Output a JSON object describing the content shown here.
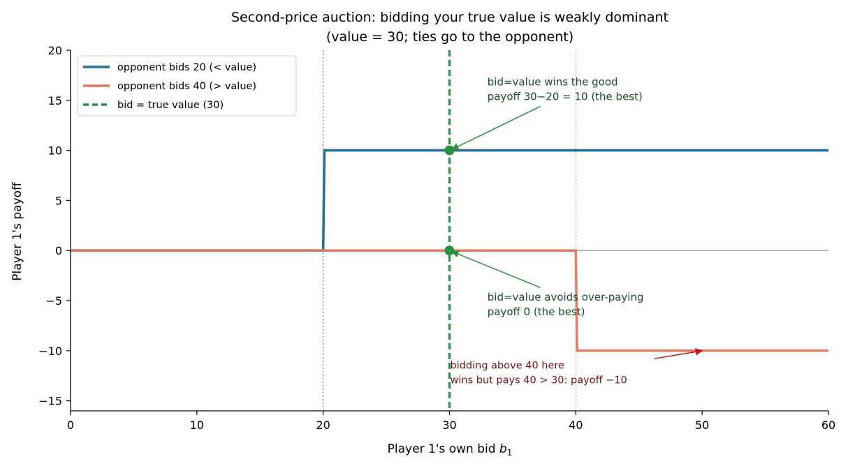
{
  "chart_data": {
    "type": "line",
    "title": "Second-price auction: bidding your true value is weakly dominant",
    "subtitle": "(value = 30; ties go to the opponent)",
    "xlabel": "Player 1's own bid",
    "xlabel_symbol": "b",
    "xlabel_subscript": "1",
    "ylabel": "Player 1's payoff",
    "xlim": [
      0,
      60
    ],
    "ylim": [
      -16,
      20
    ],
    "xticks": [
      0,
      10,
      20,
      30,
      40,
      50,
      60
    ],
    "yticks": [
      -15,
      -10,
      -5,
      0,
      5,
      10,
      15,
      20
    ],
    "ytick_labels": [
      "−15",
      "−10",
      "−5",
      "0",
      "5",
      "10",
      "15",
      "20"
    ],
    "grid": false,
    "legend_position": "top-left",
    "series": [
      {
        "name": "opponent bids 20  (< value)",
        "color": "#2a6f97",
        "style": "solid",
        "x": [
          0,
          20,
          20.1,
          60
        ],
        "y": [
          0,
          0,
          10,
          10
        ]
      },
      {
        "name": "opponent bids 40  (> value)",
        "color": "#e07a5f",
        "style": "solid",
        "x": [
          0,
          40,
          40.1,
          60
        ],
        "y": [
          0,
          0,
          -10,
          -10
        ]
      }
    ],
    "reference_lines": [
      {
        "name": "bid = true value (30)",
        "axis": "x",
        "value": 30,
        "color": "#2a9142",
        "style": "dashed",
        "in_legend": true
      },
      {
        "name": "",
        "axis": "x",
        "value": 20,
        "color": "#7ea4d0",
        "style": "dotted",
        "in_legend": false
      },
      {
        "name": "",
        "axis": "x",
        "value": 40,
        "color": "#f0b89e",
        "style": "dotted",
        "in_legend": false
      },
      {
        "name": "",
        "axis": "y",
        "value": 0,
        "color": "#999999",
        "style": "solid",
        "in_legend": false
      }
    ],
    "markers": [
      {
        "x": 30,
        "y": 10,
        "color": "#2a9142"
      },
      {
        "x": 30,
        "y": 0,
        "color": "#2a9142"
      }
    ],
    "annotations": [
      {
        "lines": [
          "bid=value wins the good",
          "payoff 30−20 = 10 (the best)"
        ],
        "text_x": 33,
        "text_y": 16.5,
        "arrow_from": [
          37.2,
          14.4
        ],
        "arrow_to": [
          30.2,
          10.1
        ],
        "color": "#2a9142",
        "text_color": "#1a4d2a"
      },
      {
        "lines": [
          "bid=value avoids over-paying",
          "payoff 0 (the best)"
        ],
        "text_x": 33,
        "text_y": -5,
        "arrow_from": [
          37.2,
          -3.7
        ],
        "arrow_to": [
          30.2,
          -0.1
        ],
        "color": "#2a9142",
        "text_color": "#1a4d2a"
      },
      {
        "lines": [
          "bidding above 40 here",
          "wins but pays 40 > 30: payoff −10"
        ],
        "text_x": 30,
        "text_y": -11.8,
        "arrow_from": [
          46.2,
          -10.8
        ],
        "arrow_to": [
          50,
          -10
        ],
        "color": "#c0141a",
        "text_color": "#7a1212"
      }
    ]
  }
}
